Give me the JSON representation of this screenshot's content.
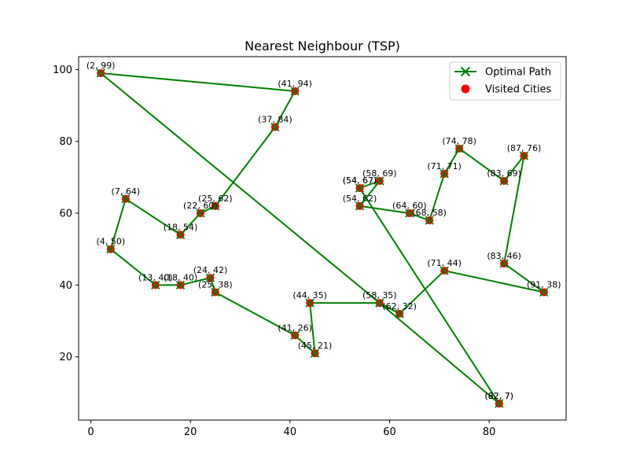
{
  "chart_data": {
    "type": "line",
    "title": "Nearest Neighbour (TSP)",
    "xlabel": "",
    "ylabel": "",
    "xlim": [
      -2.45,
      95.45
    ],
    "ylim": [
      2.4,
      103.6
    ],
    "x_ticks": [
      0,
      20,
      40,
      60,
      80
    ],
    "y_ticks": [
      20,
      40,
      60,
      80,
      100
    ],
    "grid": false,
    "legend_placement": "top-right",
    "colors": {
      "path": "#008000",
      "cities": "#ff0000"
    },
    "series": [
      {
        "name": "Optimal Path",
        "style": "line-with-x-markers"
      },
      {
        "name": "Visited Cities",
        "style": "scatter"
      }
    ],
    "cities": [
      {
        "x": 45,
        "y": 21,
        "label": "(45, 21)"
      },
      {
        "x": 41,
        "y": 26,
        "label": "(41, 26)"
      },
      {
        "x": 25,
        "y": 38,
        "label": "(25, 38)"
      },
      {
        "x": 24,
        "y": 42,
        "label": "(24, 42)"
      },
      {
        "x": 18,
        "y": 40,
        "label": "(18, 40)"
      },
      {
        "x": 13,
        "y": 40,
        "label": "(13, 40)"
      },
      {
        "x": 4,
        "y": 50,
        "label": "(4, 50)"
      },
      {
        "x": 7,
        "y": 64,
        "label": "(7, 64)"
      },
      {
        "x": 18,
        "y": 54,
        "label": "(18, 54)"
      },
      {
        "x": 22,
        "y": 60,
        "label": "(22, 60)"
      },
      {
        "x": 25,
        "y": 62,
        "label": "(25, 62)"
      },
      {
        "x": 37,
        "y": 84,
        "label": "(37, 84)"
      },
      {
        "x": 41,
        "y": 94,
        "label": "(41, 94)"
      },
      {
        "x": 2,
        "y": 99,
        "label": "(2, 99)"
      },
      {
        "x": 58,
        "y": 35,
        "label": "(58, 35)"
      },
      {
        "x": 82,
        "y": 7,
        "label": "(82, 7)"
      },
      {
        "x": 54,
        "y": 67,
        "label": "(54, 67)"
      },
      {
        "x": 54,
        "y": 67,
        "label": "(54, 67)"
      },
      {
        "x": 58,
        "y": 69,
        "label": "(58, 69)"
      },
      {
        "x": 54,
        "y": 62,
        "label": "(54, 62)"
      },
      {
        "x": 64,
        "y": 60,
        "label": "(64, 60)"
      },
      {
        "x": 68,
        "y": 58,
        "label": "(68, 58)"
      },
      {
        "x": 71,
        "y": 71,
        "label": "(71, 71)"
      },
      {
        "x": 74,
        "y": 78,
        "label": "(74, 78)"
      },
      {
        "x": 83,
        "y": 69,
        "label": "(83, 69)"
      },
      {
        "x": 87,
        "y": 76,
        "label": "(87, 76)"
      },
      {
        "x": 83,
        "y": 46,
        "label": "(83, 46)"
      },
      {
        "x": 91,
        "y": 38,
        "label": "(91, 38)"
      },
      {
        "x": 71,
        "y": 44,
        "label": "(71, 44)"
      },
      {
        "x": 62,
        "y": 32,
        "label": "(62, 32)"
      },
      {
        "x": 82,
        "y": 7,
        "label": "(82, 7)"
      },
      {
        "x": 44,
        "y": 35,
        "label": "(44, 35)"
      }
    ],
    "path": [
      [
        45,
        21
      ],
      [
        41,
        26
      ],
      [
        25,
        38
      ],
      [
        24,
        42
      ],
      [
        18,
        40
      ],
      [
        13,
        40
      ],
      [
        4,
        50
      ],
      [
        7,
        64
      ],
      [
        18,
        54
      ],
      [
        22,
        60
      ],
      [
        25,
        62
      ],
      [
        37,
        84
      ],
      [
        41,
        94
      ],
      [
        2,
        99
      ],
      [
        58,
        35
      ],
      [
        82,
        7
      ],
      [
        54,
        67
      ],
      [
        58,
        69
      ],
      [
        54,
        62
      ],
      [
        64,
        60
      ],
      [
        68,
        58
      ],
      [
        71,
        71
      ],
      [
        74,
        78
      ],
      [
        83,
        69
      ],
      [
        87,
        76
      ],
      [
        83,
        46
      ],
      [
        91,
        38
      ],
      [
        71,
        44
      ],
      [
        62,
        32
      ],
      [
        58,
        35
      ],
      [
        44,
        35
      ],
      [
        45,
        21
      ]
    ]
  }
}
